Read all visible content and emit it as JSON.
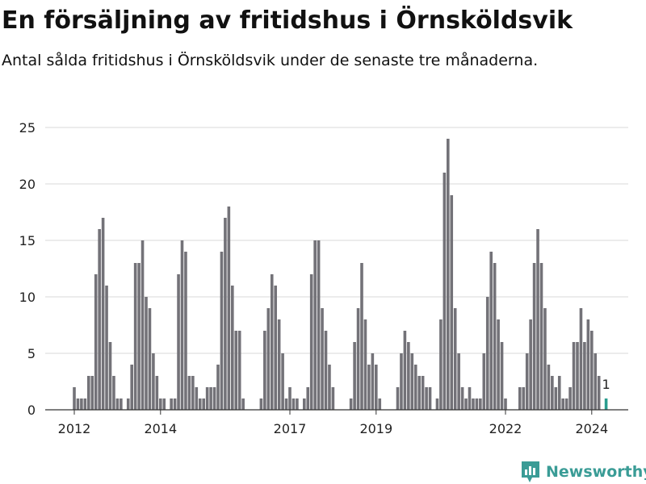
{
  "header": {
    "title": "En försäljning av fritidshus i Örnsköldsvik",
    "subtitle": "Antal sålda fritidshus i Örnsköldsvik under de senaste tre månaderna."
  },
  "brand": {
    "name": "Newsworthy",
    "icon": "bar-chart-icon",
    "color": "#3a9c96"
  },
  "colors": {
    "bar": "#737278",
    "highlight": "#2a9d8f",
    "grid": "#d9d9d9"
  },
  "chart_data": {
    "type": "bar",
    "title": "",
    "xlabel": "",
    "ylabel": "",
    "ylim": [
      0,
      25
    ],
    "yticks": [
      0,
      5,
      10,
      15,
      20,
      25
    ],
    "x_start": "2012-01",
    "x_end": "2024-02",
    "xticks": [
      {
        "label": "2012",
        "month": "2012-01"
      },
      {
        "label": "2014",
        "month": "2014-01"
      },
      {
        "label": "2017",
        "month": "2017-01"
      },
      {
        "label": "2019",
        "month": "2019-01"
      },
      {
        "label": "2022",
        "month": "2022-01"
      },
      {
        "label": "2024",
        "month": "2024-01"
      }
    ],
    "values": [
      2,
      1,
      1,
      1,
      3,
      3,
      12,
      16,
      17,
      11,
      6,
      3,
      1,
      1,
      0,
      1,
      4,
      13,
      13,
      15,
      10,
      9,
      5,
      3,
      1,
      1,
      0,
      1,
      1,
      12,
      15,
      14,
      3,
      3,
      2,
      1,
      1,
      2,
      2,
      2,
      4,
      14,
      17,
      18,
      11,
      7,
      7,
      1,
      0,
      0,
      0,
      0,
      1,
      7,
      9,
      12,
      11,
      8,
      5,
      1,
      2,
      1,
      1,
      0,
      1,
      2,
      12,
      15,
      15,
      9,
      7,
      4,
      2,
      0,
      0,
      0,
      0,
      1,
      6,
      9,
      13,
      8,
      4,
      5,
      4,
      1,
      0,
      0,
      0,
      0,
      2,
      5,
      7,
      6,
      5,
      4,
      3,
      3,
      2,
      2,
      0,
      1,
      8,
      21,
      24,
      19,
      9,
      5,
      2,
      1,
      2,
      1,
      1,
      1,
      5,
      10,
      14,
      13,
      8,
      6,
      1,
      0,
      0,
      0,
      2,
      2,
      5,
      8,
      13,
      16,
      13,
      9,
      4,
      3,
      2,
      3,
      1,
      1,
      2,
      6,
      6,
      9,
      6,
      8,
      7,
      5,
      3,
      0,
      1
    ],
    "highlight_last": true,
    "last_label": "1"
  }
}
